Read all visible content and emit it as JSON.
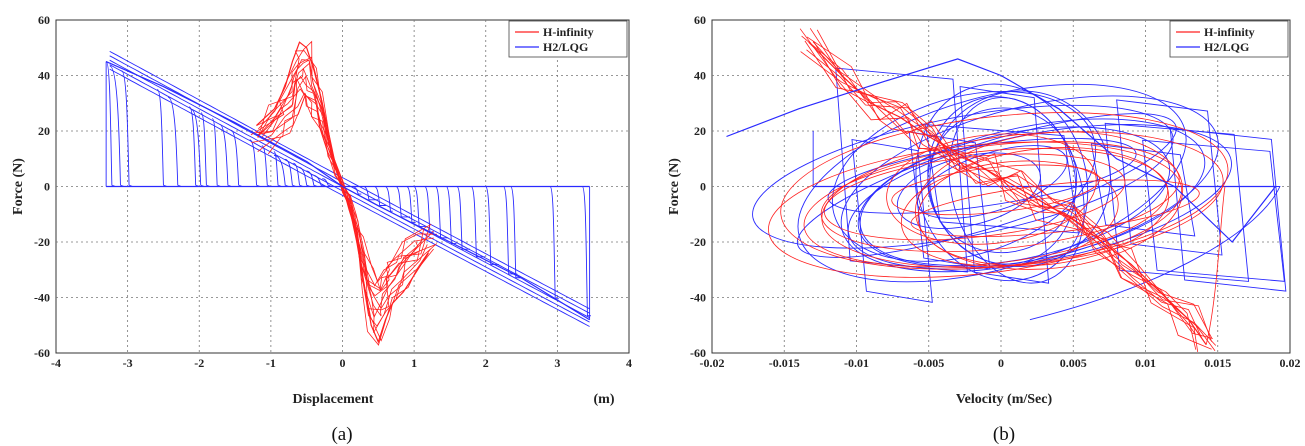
{
  "chart_data": [
    {
      "type": "line",
      "panel": "a",
      "caption": "(a)",
      "xlabel": "Displacement",
      "xunit": "(m)",
      "ylabel": "Force (N)",
      "xlim": [
        -4,
        4
      ],
      "ylim": [
        -60,
        60
      ],
      "xticks": [
        -4,
        -3,
        -2,
        -1,
        0,
        1,
        2,
        3,
        4
      ],
      "yticks": [
        -60,
        -40,
        -20,
        0,
        20,
        40,
        60
      ],
      "grid": true,
      "legend_position": "top-right",
      "series": [
        {
          "name": "H-infinity",
          "color": "#ff2020",
          "x": [
            -1.2,
            -0.95,
            -0.8,
            -0.7,
            -0.6,
            -0.5,
            -0.4,
            -0.3,
            -0.2,
            -0.1,
            0,
            0.1,
            0.2,
            0.3,
            0.4,
            0.5,
            0.6,
            0.7,
            0.85,
            1.0,
            1.2
          ],
          "y": [
            22,
            28,
            36,
            45,
            52,
            50,
            42,
            32,
            20,
            8,
            0,
            -8,
            -20,
            -35,
            -50,
            -56,
            -48,
            -42,
            -38,
            -32,
            -24
          ]
        },
        {
          "name": "H2/LQG",
          "color": "#2a2aff",
          "x": [
            -3.3,
            -2.5,
            -1.5,
            -0.5,
            0,
            0.5,
            1.5,
            2.5,
            3.45
          ],
          "y": [
            45,
            36,
            23,
            9,
            0,
            -7,
            -20,
            -33,
            -48
          ]
        }
      ]
    },
    {
      "type": "line",
      "panel": "b",
      "caption": "(b)",
      "xlabel": "Velocity (m/Sec)",
      "ylabel": "Force (N)",
      "xlim": [
        -0.02,
        0.02
      ],
      "ylim": [
        -60,
        60
      ],
      "xticks": [
        -0.02,
        -0.015,
        -0.01,
        -0.005,
        0,
        0.005,
        0.01,
        0.015,
        0.02
      ],
      "yticks": [
        -60,
        -40,
        -20,
        0,
        20,
        40,
        60
      ],
      "grid": true,
      "legend_position": "top-right",
      "series": [
        {
          "name": "H-infinity",
          "color": "#ff2020",
          "x": [
            -0.0133,
            -0.011,
            -0.009,
            -0.007,
            -0.005,
            -0.003,
            -0.001,
            0.001,
            0.003,
            0.005,
            0.007,
            0.009,
            0.011,
            0.013,
            0.0142
          ],
          "y": [
            52,
            40,
            30,
            25,
            18,
            12,
            6,
            0,
            -6,
            -12,
            -20,
            -28,
            -38,
            -48,
            -57
          ]
        },
        {
          "name": "H2/LQG",
          "color": "#2a2aff",
          "x": [
            -0.019,
            -0.014,
            -0.008,
            -0.003,
            0,
            0.004,
            0.008,
            0.012,
            0.016,
            0.019
          ],
          "y": [
            18,
            28,
            38,
            46,
            40,
            28,
            10,
            0,
            -20,
            0
          ]
        }
      ]
    }
  ]
}
